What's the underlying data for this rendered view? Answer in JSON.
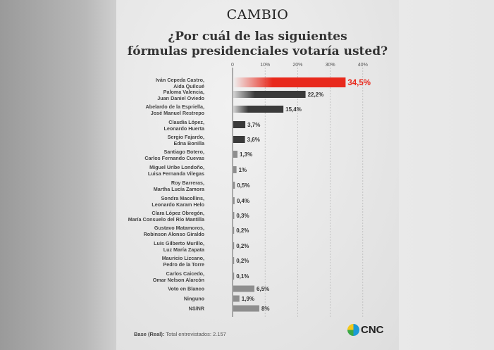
{
  "brand": "CAMBIO",
  "title_line1": "¿Por cuál de las siguientes",
  "title_line2": "fórmulas presidenciales votaría usted?",
  "footer": {
    "base_label": "Base (Real):",
    "base_text": "Total entrevistados: 2.157"
  },
  "logo": {
    "text": "CNC"
  },
  "chart_data": {
    "type": "bar",
    "orientation": "horizontal",
    "xlim": [
      0,
      40
    ],
    "ticks": [
      "0",
      "10%",
      "20%",
      "30%",
      "40%"
    ],
    "grid": true,
    "colors": {
      "highlight": "#e8291c",
      "dark": "#3a3a3a",
      "light": "#8e8e8e"
    },
    "categories": [
      [
        "Iván Cepeda Castro,",
        "Aida Quilcué"
      ],
      [
        "Paloma Valencia,",
        "Juan Daniel Oviedo"
      ],
      [
        "Abelardo de la Espriella,",
        "José Manuel Restrepo"
      ],
      [
        "Claudia López,",
        "Leonardo Huerta"
      ],
      [
        "Sergio Fajardo,",
        "Edna Bonilla"
      ],
      [
        "Santiago Botero,",
        "Carlos Fernando Cuevas"
      ],
      [
        "Miguel Uribe Londoño,",
        "Luisa Fernanda Vilegas"
      ],
      [
        "Roy Barreras,",
        "Martha Lucía Zamora"
      ],
      [
        "Sondra Macollins,",
        "Leonardo Karam Helo"
      ],
      [
        "Clara López Obregón,",
        "María Consuelo del Río Mantilla"
      ],
      [
        "Gustavo Matamoros,",
        "Robinson Alonso Giraldo"
      ],
      [
        "Luis Gilberto Murillo,",
        "Luz María Zapata"
      ],
      [
        "Mauricio Lizcano,",
        "Pedro de la Torre"
      ],
      [
        "Carlos Caicedo,",
        "Omar Nelson Alarcón"
      ],
      [
        "Voto en Blanco"
      ],
      [
        "Ninguno"
      ],
      [
        "NS/NR"
      ]
    ],
    "values": [
      34.5,
      22.2,
      15.4,
      3.7,
      3.6,
      1.3,
      1,
      0.5,
      0.4,
      0.3,
      0.2,
      0.2,
      0.2,
      0.1,
      6.5,
      1.9,
      8
    ],
    "value_labels": [
      "34,5%",
      "22,2%",
      "15,4%",
      "3,7%",
      "3,6%",
      "1,3%",
      "1%",
      "0,5%",
      "0,4%",
      "0,3%",
      "0,2%",
      "0,2%",
      "0,2%",
      "0,1%",
      "6,5%",
      "1,9%",
      "8%"
    ]
  }
}
